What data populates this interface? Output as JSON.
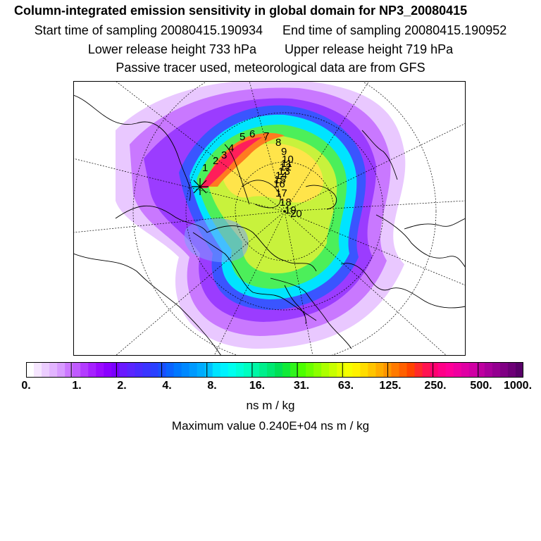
{
  "header": {
    "title": "Column-integrated emission sensitivity in global domain for NP3_20080415",
    "start_label": "Start time of sampling 20080415.190934",
    "end_label": "End time of sampling 20080415.190952",
    "lower_label": "Lower release height  733 hPa",
    "upper_label": "Upper release height  719 hPa",
    "tracer_note": "Passive tracer used, meteorological data are from GFS"
  },
  "map": {
    "track_labels": [
      "1",
      "2",
      "3",
      "4",
      "5",
      "6",
      "7",
      "8",
      "9",
      "10",
      "11",
      "12",
      "13",
      "14",
      "15",
      "16",
      "17",
      "18",
      "19",
      "20"
    ]
  },
  "colorbar": {
    "tick_labels": [
      "0.",
      "1.",
      "2.",
      "4.",
      "8.",
      "16.",
      "31.",
      "63.",
      "125.",
      "250.",
      "500.",
      "1000."
    ],
    "units": "ns m / kg",
    "colors": [
      "#ffffff",
      "#f6e6ff",
      "#eccdff",
      "#e2b4ff",
      "#d89bff",
      "#cc78ff",
      "#c05aff",
      "#b33cff",
      "#a621ff",
      "#9a0bff",
      "#8a00ff",
      "#7a00ff",
      "#6a1aff",
      "#5a26ff",
      "#4a2cff",
      "#3a35ff",
      "#2a40ff",
      "#1a50ff",
      "#0a64ff",
      "#0078ff",
      "#0088ff",
      "#009aff",
      "#00acff",
      "#00c0ff",
      "#00e4ff",
      "#00f2ff",
      "#00ffef",
      "#00ffd8",
      "#00ffc0",
      "#00f6a6",
      "#00ef8c",
      "#00e872",
      "#00e056",
      "#10ea38",
      "#30f41c",
      "#4cff00",
      "#6cff00",
      "#8cff00",
      "#acff00",
      "#c8ff00",
      "#e2ff00",
      "#f6ff00",
      "#fff200",
      "#ffdc00",
      "#ffc400",
      "#ffac00",
      "#ff9400",
      "#ff7a00",
      "#ff6000",
      "#ff4400",
      "#ff2a2a",
      "#ff1450",
      "#ff0070",
      "#ff0088",
      "#ff0098",
      "#f000a0",
      "#e000a4",
      "#d000a4",
      "#be00a0",
      "#a8009a",
      "#940090",
      "#800084",
      "#6c0076",
      "#580068"
    ]
  },
  "maximum": "Maximum value  0.240E+04 ns m / kg"
}
